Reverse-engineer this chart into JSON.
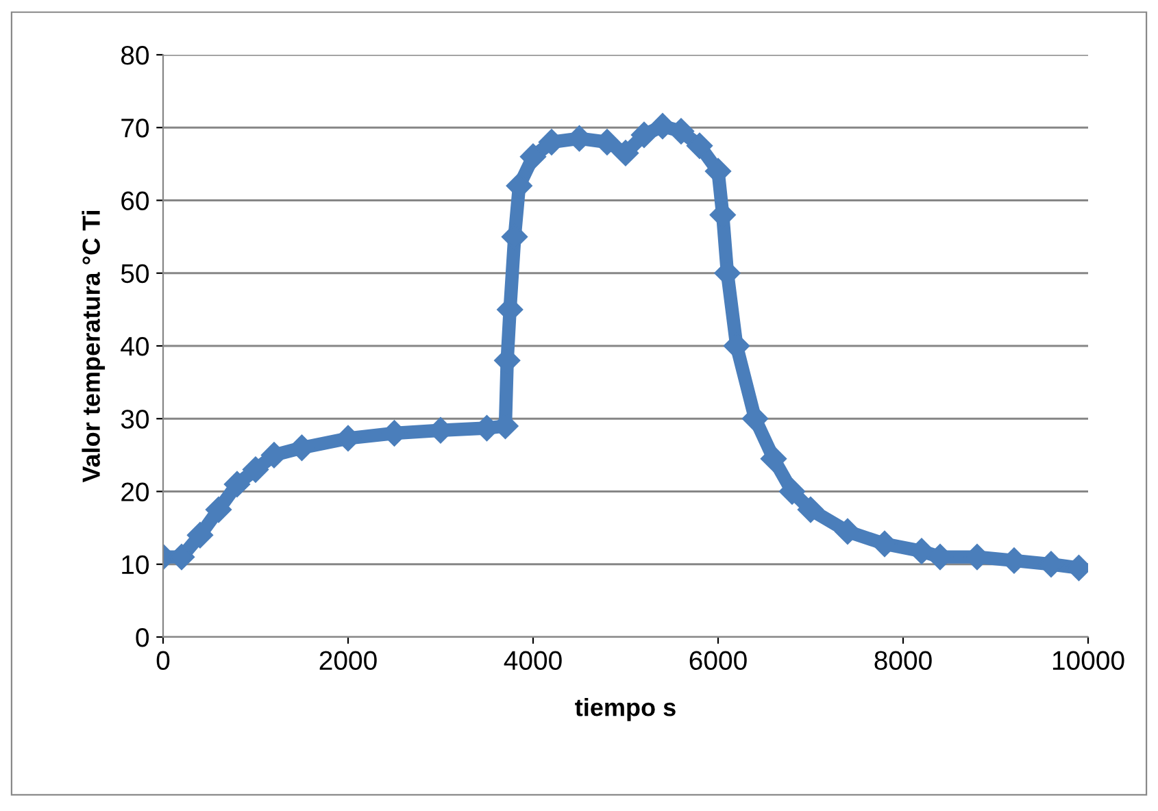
{
  "chart_data": {
    "type": "line",
    "xlabel": "tiempo s",
    "ylabel": "Valor temperatura °C Ti",
    "xlim": [
      0,
      10000
    ],
    "ylim": [
      0,
      80
    ],
    "xticks": [
      0,
      2000,
      4000,
      6000,
      8000,
      10000
    ],
    "yticks": [
      0,
      10,
      20,
      30,
      40,
      50,
      60,
      70,
      80
    ],
    "grid": "y",
    "marker": "diamond",
    "line_style": "solid",
    "legend": false,
    "series": [
      {
        "color": "#4a7ebb",
        "x": [
          0,
          200,
          400,
          600,
          800,
          1000,
          1200,
          1500,
          2000,
          2500,
          3000,
          3500,
          3700,
          3720,
          3750,
          3800,
          3850,
          4000,
          4200,
          4500,
          4800,
          5000,
          5200,
          5400,
          5600,
          5800,
          6000,
          6050,
          6100,
          6200,
          6400,
          6600,
          6800,
          7000,
          7400,
          7800,
          8200,
          8400,
          8800,
          9200,
          9600,
          9900
        ],
        "values": [
          11,
          11,
          14,
          17.5,
          21,
          23,
          25,
          26,
          27.3,
          28,
          28.4,
          28.7,
          29,
          38,
          45,
          55,
          62,
          66,
          68,
          68.5,
          68,
          66.5,
          69,
          70.2,
          69.5,
          67.5,
          64,
          58,
          50,
          40,
          30,
          24.5,
          20,
          17.5,
          14.5,
          12.8,
          11.8,
          11,
          11,
          10.5,
          10,
          9.5
        ]
      }
    ]
  }
}
